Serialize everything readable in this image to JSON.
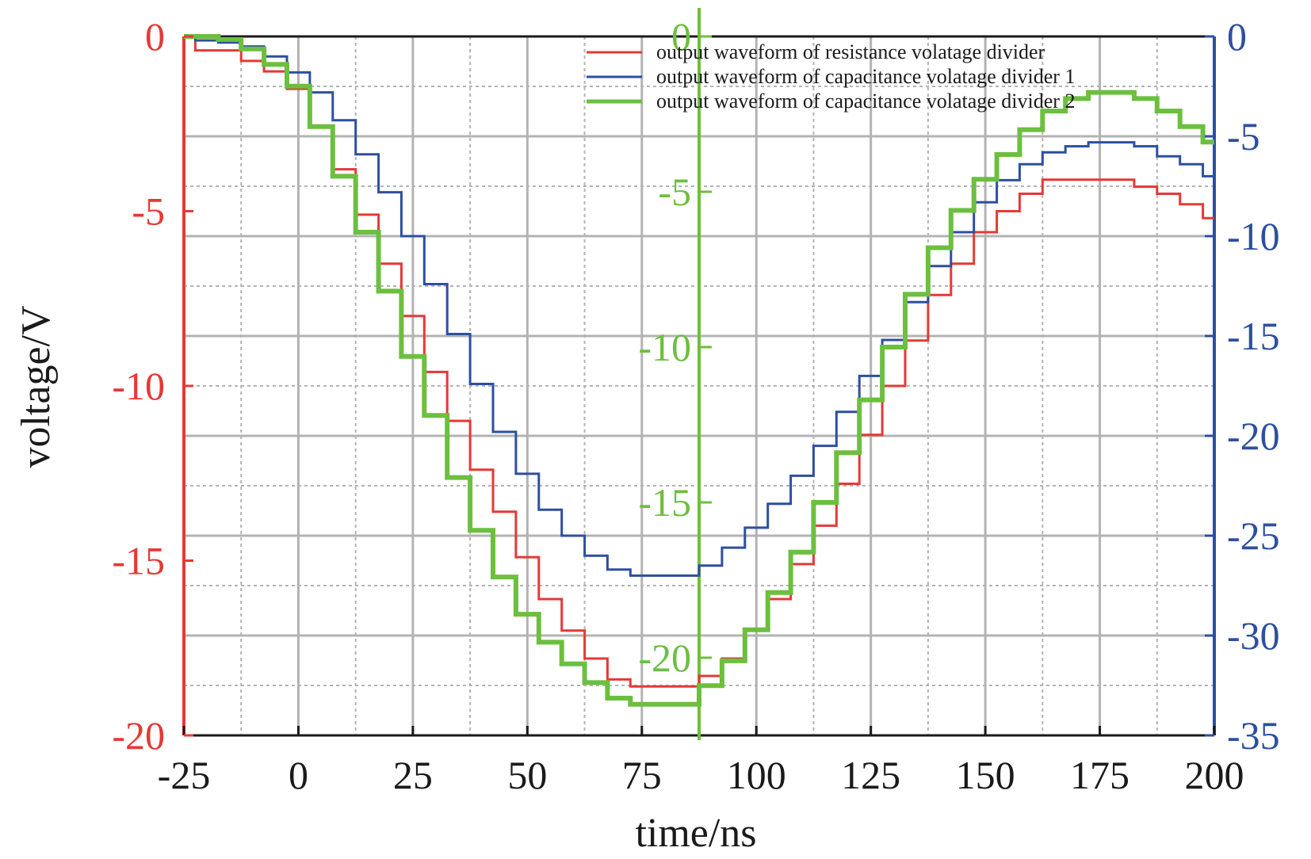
{
  "chart_data": {
    "type": "line",
    "xlabel": "time/ns",
    "ylabel": "voltage/V",
    "xlim": [
      -25,
      200
    ],
    "x_ticks": [
      -25,
      0,
      25,
      50,
      75,
      100,
      125,
      150,
      175,
      200
    ],
    "grid": true,
    "legend_position": "top-right",
    "axes": {
      "left": {
        "color": "#e53935",
        "ylim": [
          -20,
          0
        ],
        "ticks": [
          0,
          -5,
          -10,
          -15,
          -20
        ]
      },
      "right": {
        "color": "#2d4fa0",
        "ylim": [
          -35,
          0
        ],
        "ticks": [
          0,
          -5,
          -10,
          -15,
          -20,
          -25,
          -30,
          -35
        ]
      },
      "middle": {
        "color": "#6cbf3f",
        "at_x": 87.5,
        "ylim": [
          -22.5,
          0
        ],
        "ticks": [
          0,
          -5,
          -10,
          -15,
          -20
        ]
      }
    },
    "series": [
      {
        "name": "output waveform of resistance volatage divider",
        "color": "#e53935",
        "axis": "left",
        "x": [
          -25,
          -20,
          -15,
          -10,
          -5,
          0,
          5,
          10,
          15,
          20,
          25,
          30,
          35,
          40,
          45,
          50,
          55,
          60,
          65,
          70,
          75,
          80,
          85,
          90,
          95,
          100,
          105,
          110,
          115,
          120,
          125,
          130,
          135,
          140,
          145,
          150,
          155,
          160,
          165,
          170,
          175,
          180,
          185,
          190,
          195,
          200
        ],
        "y": [
          0,
          -0.4,
          -0.4,
          -0.7,
          -1.0,
          -1.5,
          -2.6,
          -3.8,
          -5.1,
          -6.5,
          -8.0,
          -9.6,
          -11.0,
          -12.4,
          -13.6,
          -14.9,
          -16.1,
          -17.0,
          -17.8,
          -18.4,
          -18.6,
          -18.6,
          -18.6,
          -18.3,
          -17.8,
          -17.0,
          -16.1,
          -15.1,
          -14.0,
          -12.8,
          -11.4,
          -10.0,
          -8.7,
          -7.4,
          -6.5,
          -5.6,
          -5.0,
          -4.5,
          -4.1,
          -4.1,
          -4.1,
          -4.1,
          -4.3,
          -4.5,
          -4.8,
          -5.2
        ]
      },
      {
        "name": "output waveform of capacitance volatage divider 1",
        "color": "#2d4fa0",
        "axis": "right",
        "x": [
          -25,
          -20,
          -15,
          -10,
          -5,
          0,
          5,
          10,
          15,
          20,
          25,
          30,
          35,
          40,
          45,
          50,
          55,
          60,
          65,
          70,
          75,
          80,
          85,
          90,
          95,
          100,
          105,
          110,
          115,
          120,
          125,
          130,
          135,
          140,
          145,
          150,
          155,
          160,
          165,
          170,
          175,
          180,
          185,
          190,
          195,
          200
        ],
        "y": [
          0,
          -0.2,
          -0.3,
          -0.5,
          -1.0,
          -1.8,
          -2.8,
          -4.2,
          -5.9,
          -7.8,
          -10.0,
          -12.4,
          -14.9,
          -17.4,
          -19.8,
          -21.9,
          -23.7,
          -25.0,
          -26.0,
          -26.7,
          -27.0,
          -27.0,
          -27.0,
          -26.5,
          -25.6,
          -24.6,
          -23.4,
          -22.0,
          -20.5,
          -18.8,
          -17.0,
          -15.2,
          -13.3,
          -11.5,
          -9.8,
          -8.3,
          -7.2,
          -6.4,
          -5.8,
          -5.5,
          -5.3,
          -5.3,
          -5.5,
          -6.0,
          -6.4,
          -7.0
        ]
      },
      {
        "name": "output waveform of capacitance volatage divider 2",
        "color": "#6cbf3f",
        "axis": "middle",
        "x": [
          -25,
          -20,
          -15,
          -10,
          -5,
          0,
          5,
          10,
          15,
          20,
          25,
          30,
          35,
          40,
          45,
          50,
          55,
          60,
          65,
          70,
          75,
          80,
          85,
          90,
          95,
          100,
          105,
          110,
          115,
          120,
          125,
          130,
          135,
          140,
          145,
          150,
          155,
          160,
          165,
          170,
          175,
          180,
          185,
          190,
          195,
          200
        ],
        "y": [
          0,
          0,
          -0.1,
          -0.4,
          -0.9,
          -1.6,
          -2.9,
          -4.5,
          -6.3,
          -8.2,
          -10.3,
          -12.2,
          -14.2,
          -15.9,
          -17.4,
          -18.6,
          -19.5,
          -20.2,
          -20.8,
          -21.3,
          -21.5,
          -21.5,
          -21.5,
          -20.9,
          -20.1,
          -19.1,
          -17.9,
          -16.6,
          -15.0,
          -13.4,
          -11.7,
          -10.0,
          -8.3,
          -6.8,
          -5.6,
          -4.6,
          -3.8,
          -3.0,
          -2.4,
          -2.0,
          -1.8,
          -1.8,
          -2.0,
          -2.4,
          -2.9,
          -3.4
        ]
      }
    ]
  }
}
